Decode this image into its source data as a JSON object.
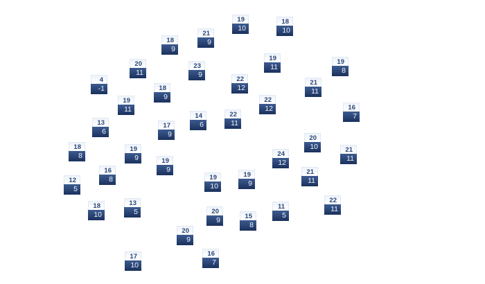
{
  "stations": [
    {
      "high": "19",
      "low": "10"
    },
    {
      "high": "21",
      "low": "9"
    },
    {
      "high": "18",
      "low": "9"
    },
    {
      "high": "20",
      "low": "11"
    },
    {
      "high": "23",
      "low": "9"
    },
    {
      "high": "4",
      "low": "-1"
    },
    {
      "high": "22",
      "low": "12"
    },
    {
      "high": "18",
      "low": "9"
    },
    {
      "high": "19",
      "low": "11"
    },
    {
      "high": "14",
      "low": "6"
    },
    {
      "high": "22",
      "low": "11"
    },
    {
      "high": "13",
      "low": "6"
    },
    {
      "high": "17",
      "low": "9"
    },
    {
      "high": "18",
      "low": "10"
    },
    {
      "high": "19",
      "low": "11"
    },
    {
      "high": "19",
      "low": "8"
    },
    {
      "high": "21",
      "low": "11"
    },
    {
      "high": "22",
      "low": "12"
    },
    {
      "high": "16",
      "low": "7"
    },
    {
      "high": "20",
      "low": "10"
    },
    {
      "high": "18",
      "low": "8"
    },
    {
      "high": "19",
      "low": "9"
    },
    {
      "high": "19",
      "low": "9"
    },
    {
      "high": "24",
      "low": "12"
    },
    {
      "high": "21",
      "low": "11"
    },
    {
      "high": "16",
      "low": "8"
    },
    {
      "high": "12",
      "low": "5"
    },
    {
      "high": "19",
      "low": "10"
    },
    {
      "high": "19",
      "low": "9"
    },
    {
      "high": "21",
      "low": "11"
    },
    {
      "high": "22",
      "low": "11"
    },
    {
      "high": "18",
      "low": "10"
    },
    {
      "high": "13",
      "low": "5"
    },
    {
      "high": "11",
      "low": "5"
    },
    {
      "high": "20",
      "low": "9"
    },
    {
      "high": "15",
      "low": "8"
    },
    {
      "high": "20",
      "low": "9"
    },
    {
      "high": "17",
      "low": "10"
    },
    {
      "high": "16",
      "low": "7"
    }
  ],
  "colors": {
    "high_bg": "#eef3fb",
    "low_bg": "#1b315d",
    "high_text": "#2b4677",
    "low_text": "#eef2fa"
  }
}
